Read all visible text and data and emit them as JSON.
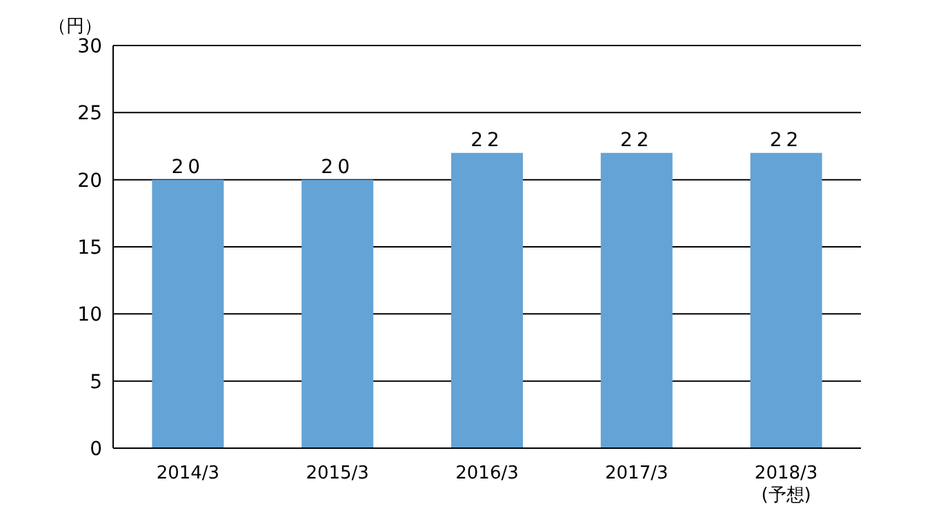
{
  "chart_data": {
    "type": "bar",
    "ylabel": "（円）",
    "categories": [
      "2014/3",
      "2015/3",
      "2016/3",
      "2017/3",
      "2018/3\n(予想)"
    ],
    "values": [
      20,
      20,
      22,
      22,
      22
    ],
    "color": "#64a3d5",
    "ylim": [
      0,
      30
    ],
    "yticks": [
      0,
      5,
      10,
      15,
      20,
      25,
      30
    ],
    "grid": "y",
    "data_labels": true
  }
}
